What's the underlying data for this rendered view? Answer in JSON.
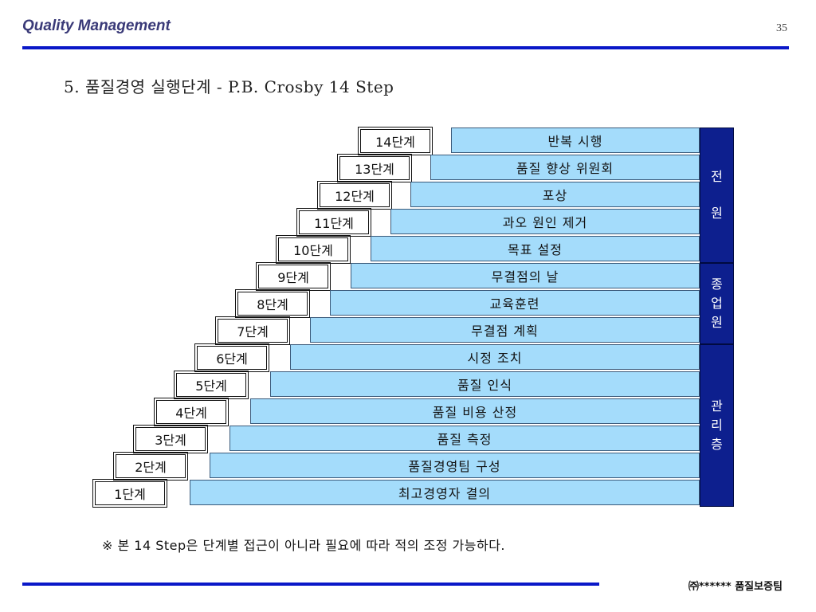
{
  "header": {
    "title": "Quality Management",
    "page_number": "35"
  },
  "slide_title": "5. 품질경영 실행단계 - P.B. Crosby 14 Step",
  "steps": [
    {
      "label": "14단계",
      "text": "반복 시행"
    },
    {
      "label": "13단계",
      "text": "품질 향상 위원회"
    },
    {
      "label": "12단계",
      "text": "포상"
    },
    {
      "label": "11단계",
      "text": "과오 원인 제거"
    },
    {
      "label": "10단계",
      "text": "목표 설정"
    },
    {
      "label": "9단계",
      "text": "무결점의 날"
    },
    {
      "label": "8단계",
      "text": "교육훈련"
    },
    {
      "label": "7단계",
      "text": "무결점 계획"
    },
    {
      "label": "6단계",
      "text": "시정 조치"
    },
    {
      "label": "5단계",
      "text": "품질 인식"
    },
    {
      "label": "4단계",
      "text": "품질 비용 산정"
    },
    {
      "label": "3단계",
      "text": "품질 측정"
    },
    {
      "label": "2단계",
      "text": "품질경영팀 구성"
    },
    {
      "label": "1단계",
      "text": "최고경영자 결의"
    }
  ],
  "side_bands": [
    {
      "label": "전원",
      "steps_covered": 5
    },
    {
      "label": "종업원",
      "steps_covered": 3
    },
    {
      "label": "관리층",
      "steps_covered": 6
    }
  ],
  "footnote": "※ 본 14 Step은 단계별 접근이 아니라 필요에 따라 적의 조정 가능하다.",
  "footer": {
    "organization": "㈜****** 품질보증팀"
  },
  "colors": {
    "accent_rule": "#0a18c8",
    "step_fill": "#a4dcfb",
    "band_fill": "#0d1f8e",
    "header_text": "#3a3a78"
  }
}
